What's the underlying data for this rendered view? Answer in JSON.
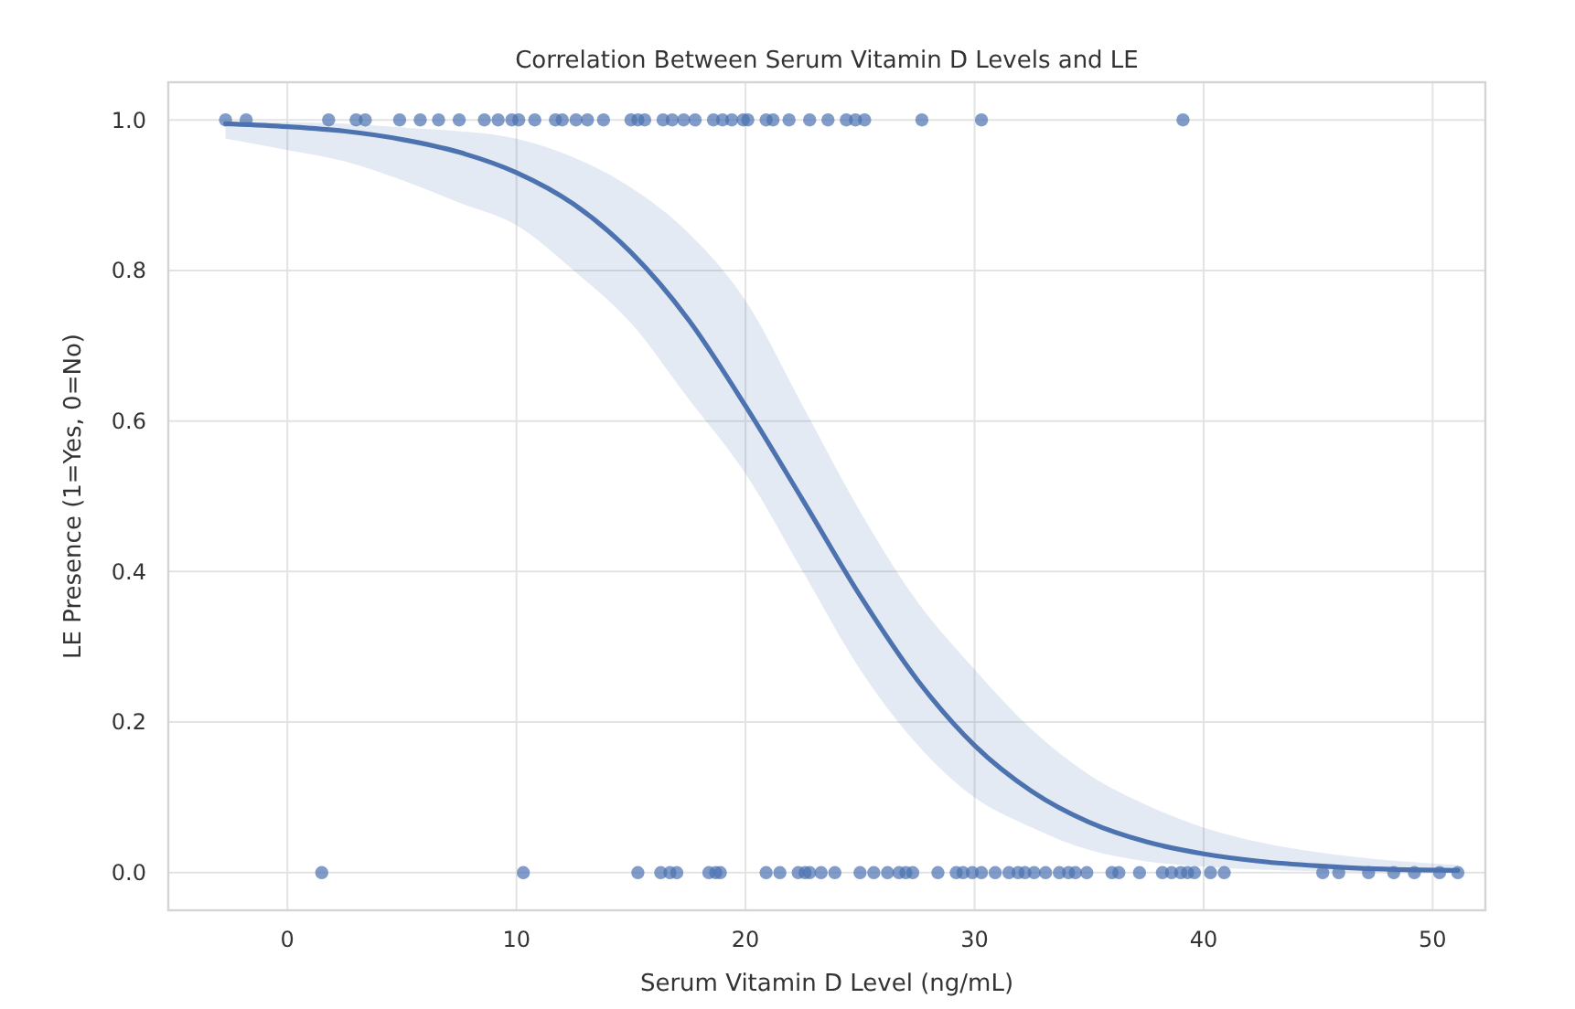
{
  "chart_data": {
    "type": "scatter",
    "title": "Correlation Between Serum Vitamin D Levels and LE",
    "xlabel": "Serum Vitamin D Level (ng/mL)",
    "ylabel": "LE Presence (1=Yes, 0=No)",
    "xlim": [
      -5.2,
      52.3
    ],
    "ylim": [
      -0.05,
      1.05
    ],
    "xticks": [
      0,
      10,
      20,
      30,
      40,
      50
    ],
    "yticks": [
      {
        "value": 0,
        "label": "0.0"
      },
      {
        "value": 0.2,
        "label": "0.2"
      },
      {
        "value": 0.4,
        "label": "0.4"
      },
      {
        "value": 0.6,
        "label": "0.6"
      },
      {
        "value": 0.8,
        "label": "0.8"
      },
      {
        "value": 1,
        "label": "1.0"
      }
    ],
    "grid": true,
    "marker": "circle",
    "line_style": "solid",
    "series": [
      {
        "color": "#4c72b0",
        "x": [
          -2.7,
          -1.8,
          1.8,
          3.0,
          3.4,
          4.9,
          5.8,
          6.6,
          7.5,
          8.6,
          9.2,
          9.8,
          10.1,
          10.8,
          11.7,
          12.0,
          12.6,
          13.1,
          13.8,
          15.0,
          15.3,
          15.6,
          16.4,
          16.8,
          17.3,
          17.8,
          18.6,
          19.0,
          19.4,
          19.9,
          20.1,
          20.9,
          21.2,
          21.9,
          22.8,
          23.6,
          24.4,
          24.8,
          25.2,
          27.7,
          30.3,
          39.1
        ],
        "values": [
          1,
          1,
          1,
          1,
          1,
          1,
          1,
          1,
          1,
          1,
          1,
          1,
          1,
          1,
          1,
          1,
          1,
          1,
          1,
          1,
          1,
          1,
          1,
          1,
          1,
          1,
          1,
          1,
          1,
          1,
          1,
          1,
          1,
          1,
          1,
          1,
          1,
          1,
          1,
          1,
          1,
          1
        ]
      },
      {
        "color": "#4c72b0",
        "x": [
          1.5,
          10.3,
          15.3,
          16.3,
          16.7,
          17.0,
          18.4,
          18.7,
          18.9,
          20.9,
          21.5,
          22.3,
          22.6,
          22.8,
          23.3,
          23.9,
          25.0,
          25.6,
          26.2,
          26.7,
          27.0,
          27.3,
          28.4,
          29.2,
          29.5,
          29.9,
          30.3,
          30.9,
          31.5,
          31.9,
          32.2,
          32.6,
          33.1,
          33.7,
          34.1,
          34.4,
          34.9,
          36.0,
          36.3,
          37.2,
          38.2,
          38.6,
          39.0,
          39.3,
          39.6,
          40.3,
          40.9,
          45.2,
          45.9,
          47.2,
          48.3,
          49.2,
          50.3,
          51.1
        ],
        "values": [
          0,
          0,
          0,
          0,
          0,
          0,
          0,
          0,
          0,
          0,
          0,
          0,
          0,
          0,
          0,
          0,
          0,
          0,
          0,
          0,
          0,
          0,
          0,
          0,
          0,
          0,
          0,
          0,
          0,
          0,
          0,
          0,
          0,
          0,
          0,
          0,
          0,
          0,
          0,
          0,
          0,
          0,
          0,
          0,
          0,
          0,
          0,
          0,
          0,
          0,
          0,
          0,
          0,
          0
        ]
      },
      {
        "type": "line",
        "marker": "none",
        "color": "#4c72b0",
        "x": [
          -2.7,
          0,
          2.5,
          5,
          7.5,
          10,
          12.5,
          15,
          17.5,
          20,
          22.5,
          25,
          27.5,
          30,
          32.5,
          35,
          37.5,
          40,
          42.5,
          45,
          47.5,
          51.1
        ],
        "values": [
          0.995,
          0.991,
          0.985,
          0.974,
          0.957,
          0.93,
          0.888,
          0.824,
          0.735,
          0.62,
          0.495,
          0.368,
          0.256,
          0.169,
          0.108,
          0.067,
          0.041,
          0.025,
          0.015,
          0.009,
          0.005,
          0.003
        ],
        "lower": [
          0.975,
          0.96,
          0.945,
          0.92,
          0.89,
          0.86,
          0.8,
          0.73,
          0.63,
          0.53,
          0.4,
          0.27,
          0.17,
          0.1,
          0.06,
          0.03,
          0.015,
          0.008,
          0.004,
          0.002,
          0.001,
          0.0005
        ],
        "upper": [
          0.998,
          0.997,
          0.995,
          0.99,
          0.985,
          0.975,
          0.95,
          0.91,
          0.85,
          0.76,
          0.62,
          0.48,
          0.36,
          0.27,
          0.19,
          0.13,
          0.09,
          0.06,
          0.04,
          0.027,
          0.018,
          0.01
        ]
      }
    ]
  }
}
